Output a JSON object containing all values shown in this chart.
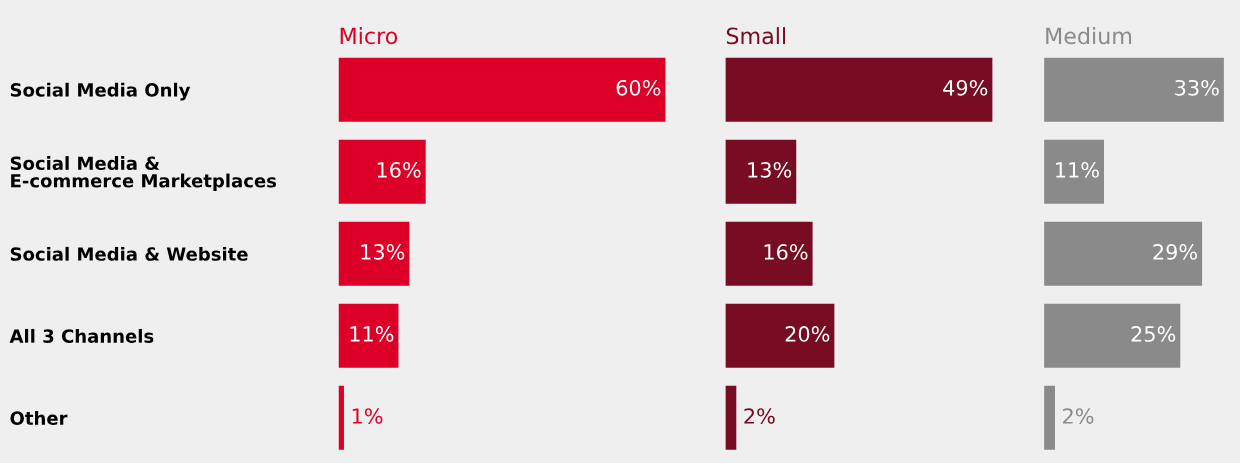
{
  "chart_data": [
    {
      "type": "bar",
      "orientation": "horizontal",
      "title": "Micro",
      "tick_labels": "y",
      "categories": [
        "Social Media Only",
        "Social Media &\nE-commerce Marketplaces",
        "Social Media & Website",
        "All 3 Channels",
        "Other"
      ],
      "series": [
        {
          "color": "#dc0028",
          "values": [
            60,
            16,
            13,
            11,
            1
          ],
          "value_labels": [
            "60%",
            "16%",
            "13%",
            "11%",
            "1%"
          ]
        }
      ]
    },
    {
      "type": "bar",
      "orientation": "horizontal",
      "title": "Small",
      "tick_labels": false,
      "categories": [
        null,
        null,
        null,
        null,
        null
      ],
      "series": [
        {
          "color": "#780c22",
          "values": [
            49,
            13,
            16,
            20,
            2
          ],
          "value_labels": [
            "49%",
            "13%",
            "16%",
            "20%",
            "2%"
          ]
        }
      ]
    },
    {
      "type": "bar",
      "orientation": "horizontal",
      "title": "Medium",
      "tick_labels": false,
      "categories": [
        null,
        null,
        null,
        null,
        null
      ],
      "series": [
        {
          "color": "#8a8a8a",
          "values": [
            33,
            11,
            29,
            25,
            2
          ],
          "value_labels": [
            "33%",
            "11%",
            "29%",
            "25%",
            "2%"
          ]
        }
      ]
    }
  ]
}
